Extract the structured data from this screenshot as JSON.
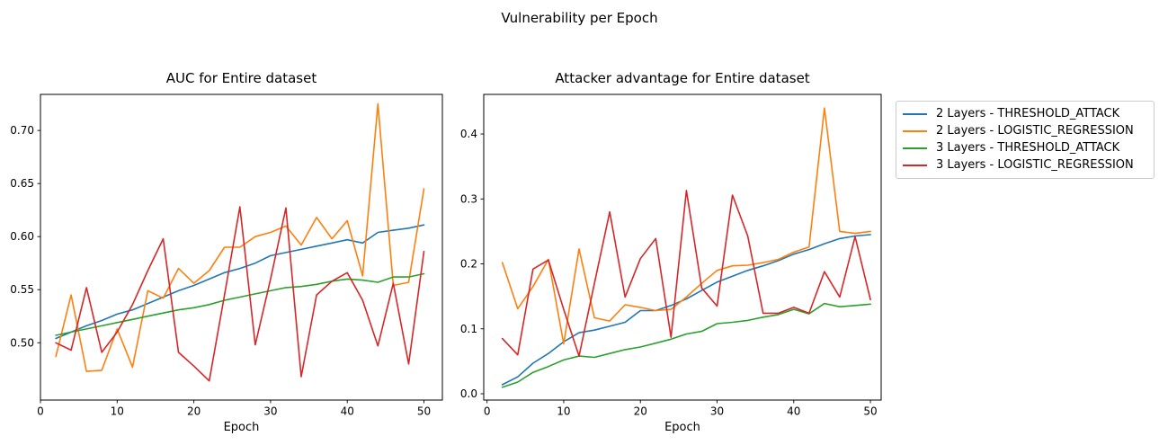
{
  "figure": {
    "suptitle": "Vulnerability per Epoch",
    "background": "#ffffff",
    "axis_color": "#000000"
  },
  "legend": {
    "entries": [
      {
        "label": "2 Layers - THRESHOLD_ATTACK",
        "color": "#1f77b4"
      },
      {
        "label": "2 Layers - LOGISTIC_REGRESSION",
        "color": "#ff7f0e"
      },
      {
        "label": "3 Layers - THRESHOLD_ATTACK",
        "color": "#2ca02c"
      },
      {
        "label": "3 Layers - LOGISTIC_REGRESSION",
        "color": "#d62728"
      }
    ]
  },
  "chart_data": [
    {
      "type": "line",
      "title": "AUC for Entire dataset",
      "xlabel": "Epoch",
      "legend_position": "outside-right-of-second-chart",
      "grid": false,
      "x": [
        2,
        4,
        6,
        8,
        10,
        12,
        14,
        16,
        18,
        20,
        22,
        24,
        26,
        28,
        30,
        32,
        34,
        36,
        38,
        40,
        42,
        44,
        46,
        48,
        50
      ],
      "xlim": [
        0,
        52.4
      ],
      "ylim": [
        0.446,
        0.734
      ],
      "xticks": [
        0,
        10,
        20,
        30,
        40,
        50
      ],
      "xtick_labels": [
        "0",
        "10",
        "20",
        "30",
        "40",
        "50"
      ],
      "yticks": [
        0.5,
        0.55,
        0.6,
        0.65,
        0.7
      ],
      "ytick_labels": [
        "0.50",
        "0.55",
        "0.60",
        "0.65",
        "0.70"
      ],
      "series": [
        {
          "name": "2 Layers - THRESHOLD_ATTACK",
          "color": "#1f77b4",
          "values": [
            0.504,
            0.51,
            0.516,
            0.521,
            0.527,
            0.531,
            0.537,
            0.543,
            0.549,
            0.554,
            0.56,
            0.566,
            0.57,
            0.575,
            0.582,
            0.585,
            0.588,
            0.591,
            0.594,
            0.597,
            0.594,
            0.604,
            0.606,
            0.608,
            0.611
          ]
        },
        {
          "name": "2 Layers - LOGISTIC_REGRESSION",
          "color": "#ff7f0e",
          "values": [
            0.487,
            0.545,
            0.473,
            0.474,
            0.513,
            0.477,
            0.549,
            0.542,
            0.57,
            0.556,
            0.568,
            0.59,
            0.59,
            0.6,
            0.604,
            0.61,
            0.592,
            0.618,
            0.598,
            0.615,
            0.563,
            0.725,
            0.554,
            0.557,
            0.645
          ]
        },
        {
          "name": "3 Layers - THRESHOLD_ATTACK",
          "color": "#2ca02c",
          "values": [
            0.507,
            0.51,
            0.513,
            0.516,
            0.519,
            0.522,
            0.525,
            0.528,
            0.531,
            0.533,
            0.536,
            0.54,
            0.543,
            0.546,
            0.549,
            0.552,
            0.553,
            0.555,
            0.558,
            0.56,
            0.559,
            0.557,
            0.562,
            0.562,
            0.565
          ]
        },
        {
          "name": "3 Layers - LOGISTIC_REGRESSION",
          "color": "#d62728",
          "values": [
            0.5,
            0.493,
            0.552,
            0.491,
            0.51,
            0.536,
            0.568,
            0.598,
            0.491,
            0.478,
            0.464,
            0.545,
            0.628,
            0.498,
            0.56,
            0.627,
            0.468,
            0.545,
            0.558,
            0.566,
            0.54,
            0.497,
            0.556,
            0.48,
            0.586
          ]
        }
      ]
    },
    {
      "type": "line",
      "title": "Attacker advantage for Entire dataset",
      "xlabel": "Epoch",
      "grid": false,
      "x": [
        2,
        4,
        6,
        8,
        10,
        12,
        14,
        16,
        18,
        20,
        22,
        24,
        26,
        28,
        30,
        32,
        34,
        36,
        38,
        40,
        42,
        44,
        46,
        48,
        50
      ],
      "xlim": [
        -0.43,
        51.4
      ],
      "ylim": [
        -0.0097,
        0.461
      ],
      "xticks": [
        0,
        10,
        20,
        30,
        40,
        50
      ],
      "xtick_labels": [
        "0",
        "10",
        "20",
        "30",
        "40",
        "50"
      ],
      "yticks": [
        0.0,
        0.1,
        0.2,
        0.3,
        0.4
      ],
      "ytick_labels": [
        "0.0",
        "0.1",
        "0.2",
        "0.3",
        "0.4"
      ],
      "series": [
        {
          "name": "2 Layers - THRESHOLD_ATTACK",
          "color": "#1f77b4",
          "values": [
            0.014,
            0.026,
            0.047,
            0.062,
            0.08,
            0.094,
            0.098,
            0.104,
            0.11,
            0.128,
            0.128,
            0.136,
            0.146,
            0.159,
            0.172,
            0.181,
            0.19,
            0.197,
            0.205,
            0.215,
            0.222,
            0.231,
            0.239,
            0.243,
            0.245
          ]
        },
        {
          "name": "2 Layers - LOGISTIC_REGRESSION",
          "color": "#ff7f0e",
          "values": [
            0.202,
            0.131,
            0.165,
            0.207,
            0.077,
            0.223,
            0.117,
            0.112,
            0.137,
            0.133,
            0.128,
            0.13,
            0.149,
            0.17,
            0.19,
            0.197,
            0.198,
            0.202,
            0.207,
            0.218,
            0.226,
            0.44,
            0.25,
            0.247,
            0.25
          ]
        },
        {
          "name": "3 Layers - THRESHOLD_ATTACK",
          "color": "#2ca02c",
          "values": [
            0.01,
            0.018,
            0.033,
            0.042,
            0.052,
            0.058,
            0.056,
            0.062,
            0.068,
            0.072,
            0.078,
            0.084,
            0.092,
            0.096,
            0.108,
            0.11,
            0.113,
            0.118,
            0.122,
            0.13,
            0.123,
            0.139,
            0.134,
            0.136,
            0.138
          ]
        },
        {
          "name": "3 Layers - LOGISTIC_REGRESSION",
          "color": "#d62728",
          "values": [
            0.085,
            0.06,
            0.192,
            0.206,
            0.13,
            0.058,
            0.17,
            0.28,
            0.149,
            0.208,
            0.239,
            0.087,
            0.313,
            0.163,
            0.135,
            0.306,
            0.243,
            0.124,
            0.124,
            0.133,
            0.124,
            0.188,
            0.149,
            0.242,
            0.145
          ]
        }
      ]
    }
  ]
}
